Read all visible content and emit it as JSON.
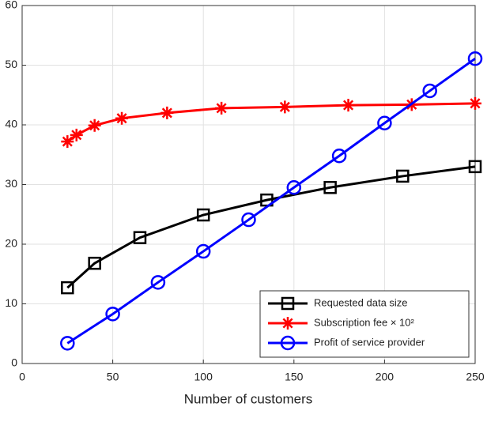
{
  "chart_data": {
    "type": "line",
    "x_label": "Number of customers",
    "xlim": [
      0,
      250
    ],
    "xticks": [
      0,
      50,
      100,
      150,
      200,
      250
    ],
    "ylim": [
      0,
      60
    ],
    "yticks": [
      0,
      10,
      20,
      30,
      40,
      50,
      60
    ],
    "grid": true,
    "legend": "lower right",
    "series": [
      {
        "name": "Requested data size",
        "color": "#000000",
        "marker": "square",
        "x": [
          25,
          40,
          65,
          100,
          135,
          170,
          210,
          250
        ],
        "values": [
          12.7,
          16.8,
          21.1,
          24.9,
          27.4,
          29.5,
          31.4,
          33.0
        ]
      },
      {
        "name": "Subscription fee × 10²",
        "color": "#ff0000",
        "marker": "star",
        "x": [
          25,
          30,
          40,
          55,
          80,
          110,
          145,
          180,
          215,
          250
        ],
        "values": [
          37.2,
          38.3,
          39.9,
          41.1,
          42.0,
          42.8,
          43.0,
          43.3,
          43.4,
          43.6
        ]
      },
      {
        "name": "Profit of service provider",
        "color": "#0000ff",
        "marker": "circle",
        "x": [
          25,
          50,
          75,
          100,
          125,
          150,
          175,
          200,
          225,
          250
        ],
        "values": [
          3.4,
          8.3,
          13.6,
          18.8,
          24.1,
          29.5,
          34.8,
          40.3,
          45.7,
          51.1
        ]
      }
    ]
  }
}
